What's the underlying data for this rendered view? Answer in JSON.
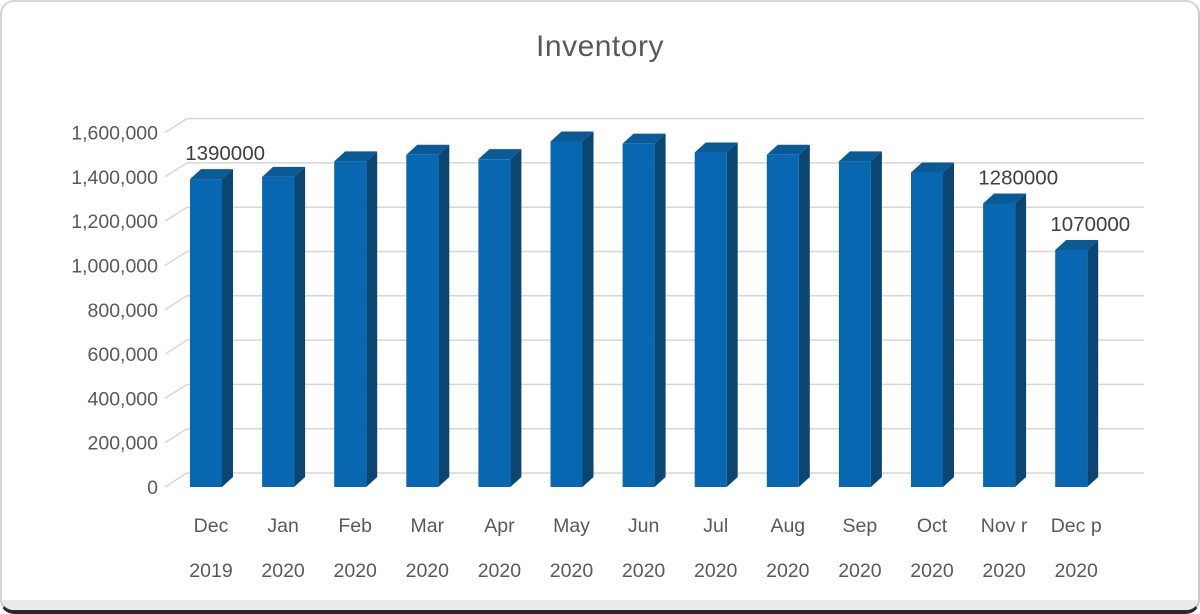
{
  "chart_data": {
    "type": "bar",
    "style": "3d-column",
    "title": "Inventory",
    "categories": [
      "Dec",
      "Jan",
      "Feb",
      "Mar",
      "Apr",
      "May",
      "Jun",
      "Jul",
      "Aug",
      "Sep",
      "Oct",
      "Nov r",
      "Dec p"
    ],
    "category_years": [
      "2019",
      "2020",
      "2020",
      "2020",
      "2020",
      "2020",
      "2020",
      "2020",
      "2020",
      "2020",
      "2020",
      "2020",
      "2020"
    ],
    "values": [
      1390000,
      1400000,
      1470000,
      1500000,
      1480000,
      1560000,
      1550000,
      1510000,
      1500000,
      1470000,
      1420000,
      1280000,
      1070000
    ],
    "value_labels": [
      {
        "index": 0,
        "text": "1390000"
      },
      {
        "index": 11,
        "text": "1280000"
      },
      {
        "index": 12,
        "text": "1070000"
      }
    ],
    "ylim": [
      0,
      1600000
    ],
    "ytick_step": 200000,
    "ytick_labels": [
      "0",
      "200,000",
      "400,000",
      "600,000",
      "800,000",
      "1,000,000",
      "1,200,000",
      "1,400,000",
      "1,600,000"
    ],
    "grid": true,
    "legend": false,
    "colors": {
      "bar_front": "#0768B1",
      "bar_top": "#0A5A96",
      "bar_side": "#0B4673",
      "gridline": "#D6D6D6",
      "axis_text": "#595959",
      "value_label_text": "#3F3F3F",
      "title_text": "#595959",
      "background": "#FFFFFF"
    }
  }
}
